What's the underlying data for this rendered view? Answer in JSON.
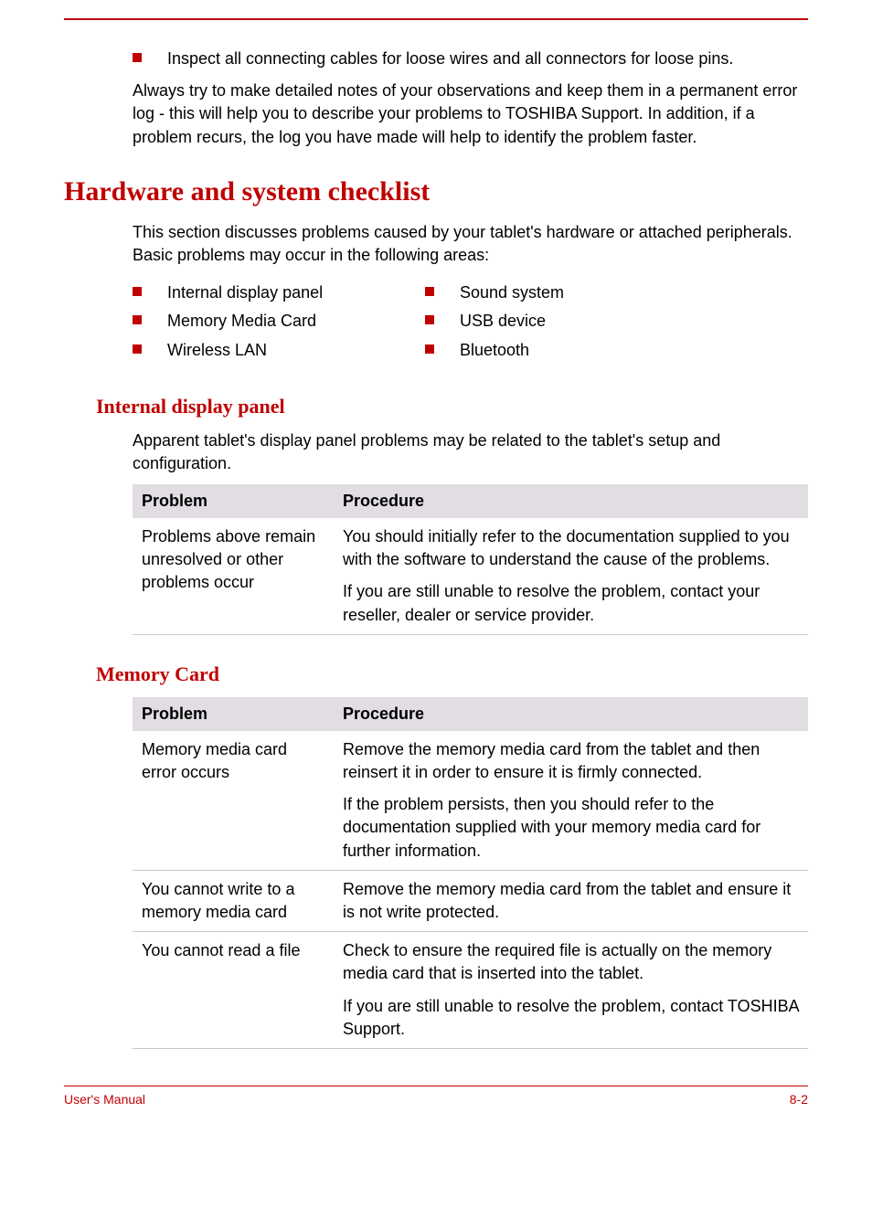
{
  "colors": {
    "accent": "#c00000",
    "table_header_bg": "#e1dde3",
    "row_border": "#c9c9c9",
    "text": "#000000",
    "background": "#ffffff"
  },
  "typography": {
    "body_font": "Arial",
    "heading_font": "Georgia",
    "body_size_pt": 18,
    "h1_size_pt": 30,
    "h2_size_pt": 22
  },
  "intro": {
    "bullet": "Inspect all connecting cables for loose wires and all connectors for loose pins.",
    "para": "Always try to make detailed notes of your observations and keep them in a permanent error log - this will help you to describe your problems to TOSHIBA Support. In addition, if a problem recurs, the log you have made will help to identify the problem faster."
  },
  "hardware_section": {
    "title": "Hardware and system checklist",
    "intro": "This section discusses problems caused by your tablet's hardware or attached peripherals. Basic problems may occur in the following areas:",
    "left_items": [
      "Internal display panel",
      "Memory Media Card",
      "Wireless LAN"
    ],
    "right_items": [
      "Sound system",
      "USB device",
      "Bluetooth"
    ]
  },
  "internal_display": {
    "title": "Internal display panel",
    "intro": "Apparent tablet's display panel problems may be related to the tablet's setup and configuration.",
    "table": {
      "headers": [
        "Problem",
        "Procedure"
      ],
      "rows": [
        {
          "problem": "Problems above remain unresolved or other problems occur",
          "procedure": [
            "You should initially refer to the documentation supplied to you with the software to understand the cause of the problems.",
            "If you are still unable to resolve the problem, contact your reseller, dealer or service provider."
          ]
        }
      ]
    }
  },
  "memory_card": {
    "title": "Memory Card",
    "table": {
      "headers": [
        "Problem",
        "Procedure"
      ],
      "rows": [
        {
          "problem": "Memory media card error occurs",
          "procedure": [
            "Remove the memory media card from the tablet and then reinsert it in order to ensure it is firmly connected.",
            "If the problem persists, then you should refer to the documentation supplied with your memory media card for further information."
          ]
        },
        {
          "problem": "You cannot write to a memory media card",
          "procedure": [
            "Remove the memory media card from the tablet and ensure it is not write protected."
          ]
        },
        {
          "problem": "You cannot read a file",
          "procedure": [
            "Check to ensure the required file is actually on the memory media card that is inserted into the tablet.",
            "If you are still unable to resolve the problem, contact TOSHIBA Support."
          ]
        }
      ]
    }
  },
  "footer": {
    "left": "User's Manual",
    "right": "8-2"
  }
}
